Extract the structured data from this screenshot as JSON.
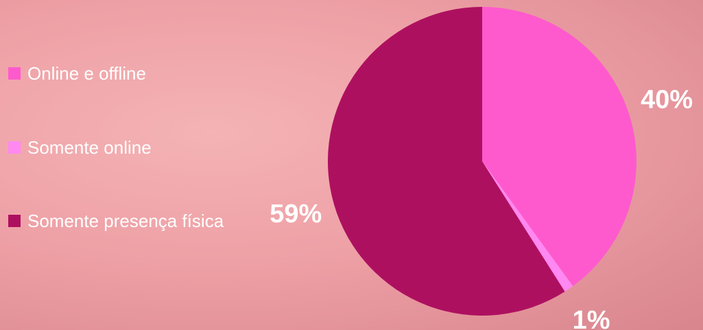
{
  "chart_data": {
    "type": "pie",
    "categories": [
      "Online e offline",
      "Somente online",
      "Somente presença física"
    ],
    "values": [
      40,
      1,
      59
    ],
    "value_labels": [
      "40%",
      "1%",
      "59%"
    ],
    "colors": [
      "#ff5acd",
      "#ff88f2",
      "#ae1060"
    ],
    "legend": "left"
  }
}
